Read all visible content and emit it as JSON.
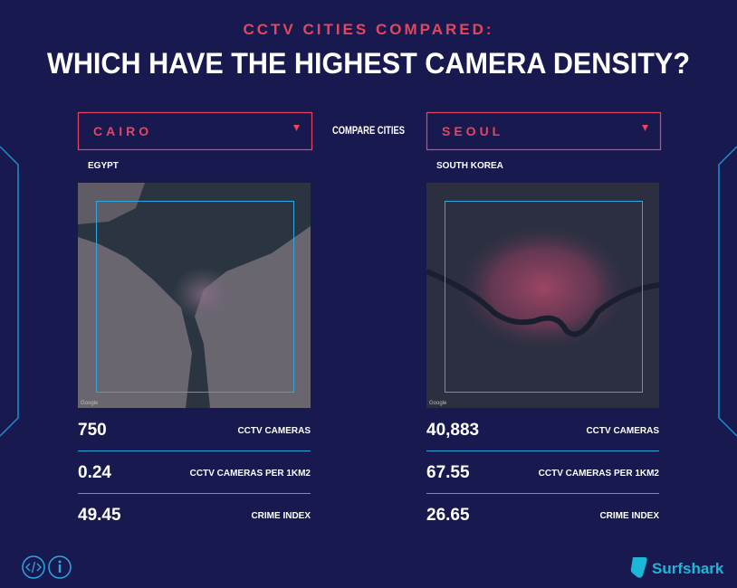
{
  "header": {
    "kicker": "CCTV CITIES COMPARED:",
    "title": "WHICH HAVE THE HIGHEST CAMERA DENSITY?"
  },
  "compare_label": "COMPARE CITIES",
  "cities": [
    {
      "name": "CAIRO",
      "country": "EGYPT",
      "map_credit": "Google",
      "stats": [
        {
          "value": "750",
          "label": "CCTV CAMERAS"
        },
        {
          "value": "0.24",
          "label": "CCTV CAMERAS PER 1KM2"
        },
        {
          "value": "49.45",
          "label": "CRIME INDEX"
        }
      ]
    },
    {
      "name": "SEOUL",
      "country": "SOUTH KOREA",
      "map_credit": "Google",
      "stats": [
        {
          "value": "40,883",
          "label": "CCTV CAMERAS"
        },
        {
          "value": "67.55",
          "label": "CCTV CAMERAS PER 1KM2"
        },
        {
          "value": "26.65",
          "label": "CRIME INDEX"
        }
      ]
    }
  ],
  "footer": {
    "brand": "Surfshark"
  }
}
